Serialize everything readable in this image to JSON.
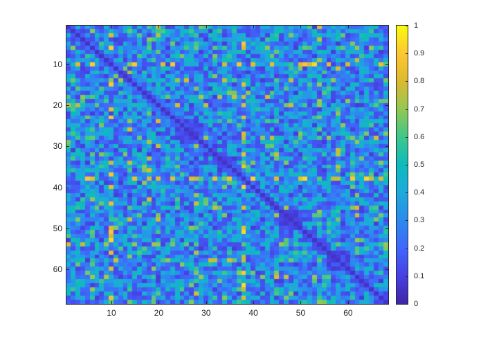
{
  "chart_data": {
    "type": "heatmap",
    "title": "",
    "xlabel": "",
    "ylabel": "",
    "rows": 68,
    "cols": 68,
    "symmetric": true,
    "diagonal_value": 0.05,
    "colormap": "parula",
    "clim": [
      0,
      1
    ],
    "xlim": [
      0.5,
      68.5
    ],
    "ylim": [
      0.5,
      68.5
    ],
    "y_direction": "reverse",
    "grid": false,
    "xticks": [
      10,
      20,
      30,
      40,
      50,
      60
    ],
    "xtick_labels": [
      "10",
      "20",
      "30",
      "40",
      "50",
      "60"
    ],
    "yticks": [
      10,
      20,
      30,
      40,
      50,
      60
    ],
    "ytick_labels": [
      "10",
      "20",
      "30",
      "40",
      "50",
      "60"
    ],
    "colorbar": {
      "position": "right",
      "ticks": [
        0,
        0.1,
        0.2,
        0.3,
        0.4,
        0.5,
        0.6,
        0.7,
        0.8,
        0.9,
        1
      ],
      "tick_labels": [
        "0",
        "0.1",
        "0.2",
        "0.3",
        "0.4",
        "0.5",
        "0.6",
        "0.7",
        "0.8",
        "0.9",
        "1"
      ]
    },
    "value_distribution": {
      "typical_range": [
        0.1,
        0.5
      ],
      "mean": 0.3
    },
    "notable_high_rows_cols": [
      10,
      38
    ],
    "notable_high_value_range": [
      0.75,
      0.95
    ],
    "secondary_high_rows_cols": [
      14,
      18,
      20,
      28,
      45,
      54,
      58,
      62
    ],
    "low_blocks_near_diagonal": [
      [
        24,
        28
      ],
      [
        33,
        36
      ],
      [
        46,
        50
      ],
      [
        56,
        60
      ]
    ],
    "random_seed": 1234
  }
}
